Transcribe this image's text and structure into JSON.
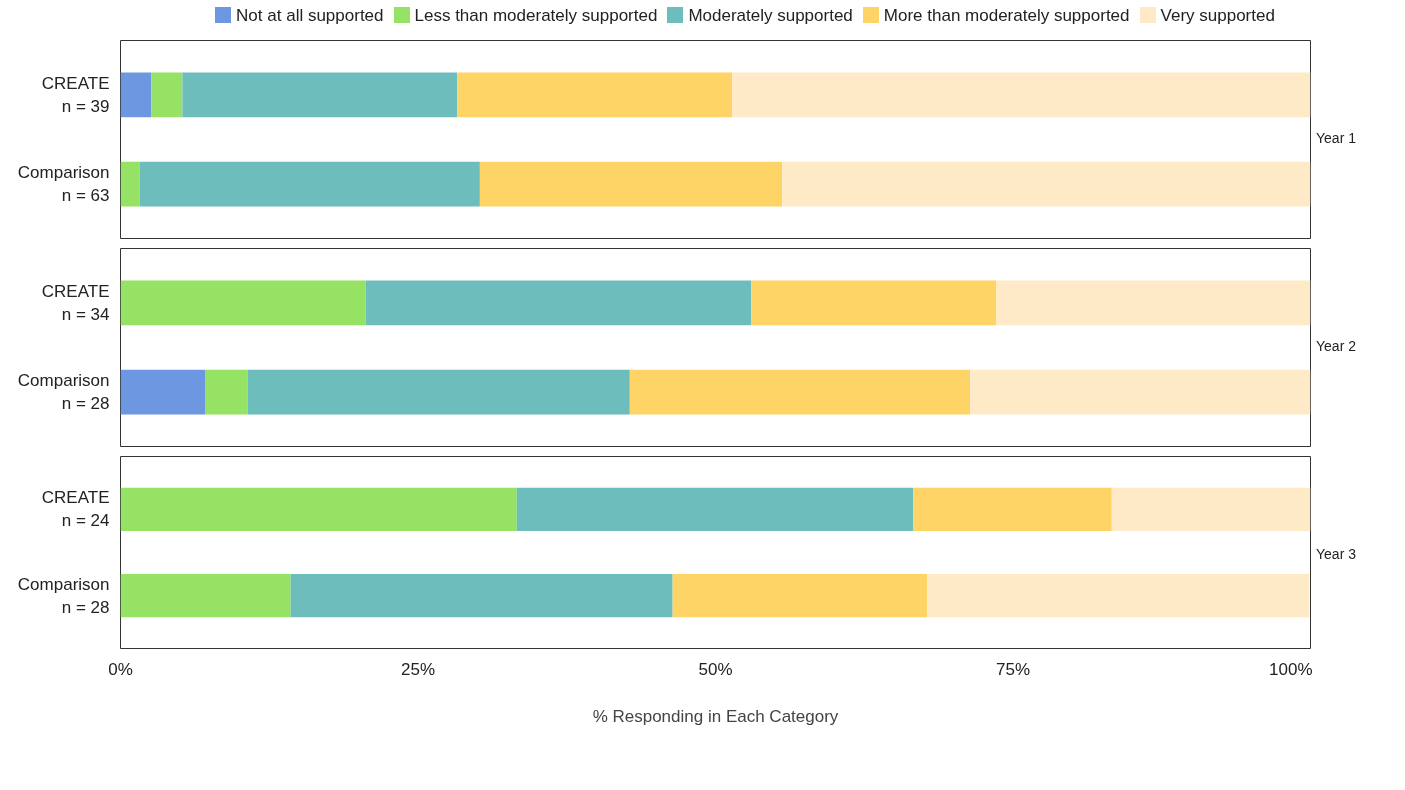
{
  "chart_data": [
    {
      "type": "bar",
      "orientation": "horizontal",
      "stacked": true,
      "title": "Year 1",
      "categories": [
        "CREATE\nn = 39",
        "Comparison\nn = 63"
      ],
      "legend": "top",
      "tick_labels": "y",
      "xlim": [
        0,
        100
      ],
      "series": [
        {
          "name": "Not at all supported",
          "color": "#6e97e2",
          "values": [
            2.6,
            0
          ]
        },
        {
          "name": "Less than moderately supported",
          "color": "#95e264",
          "values": [
            2.6,
            1.6
          ]
        },
        {
          "name": "Moderately supported",
          "color": "#6dbdbd",
          "values": [
            23.1,
            28.6
          ]
        },
        {
          "name": "More than moderately supported",
          "color": "#ffd466",
          "values": [
            23.1,
            25.4
          ]
        },
        {
          "name": "Very supported",
          "color": "#ffeac8",
          "values": [
            48.6,
            44.4
          ]
        }
      ]
    },
    {
      "type": "bar",
      "orientation": "horizontal",
      "stacked": true,
      "title": "Year 2",
      "categories": [
        "CREATE\nn = 34",
        "Comparison\nn = 28"
      ],
      "tick_labels": "y",
      "xlim": [
        0,
        100
      ],
      "series": [
        {
          "color": "#6e97e2",
          "values": [
            0,
            7.1
          ]
        },
        {
          "color": "#95e264",
          "values": [
            20.6,
            3.6
          ]
        },
        {
          "color": "#6dbdbd",
          "values": [
            32.4,
            32.1
          ]
        },
        {
          "color": "#ffd466",
          "values": [
            20.6,
            28.6
          ]
        },
        {
          "color": "#ffeac8",
          "values": [
            26.4,
            28.6
          ]
        }
      ]
    },
    {
      "type": "bar",
      "orientation": "horizontal",
      "stacked": true,
      "title": "Year 3",
      "categories": [
        "CREATE\nn = 24",
        "Comparison\nn = 28"
      ],
      "xlabel": "% Responding in Each Category",
      "xlim": [
        0,
        100
      ],
      "xticks": [
        {
          "value": 0,
          "label": "0%"
        },
        {
          "value": 25,
          "label": "25%"
        },
        {
          "value": 50,
          "label": "50%"
        },
        {
          "value": 75,
          "label": "75%"
        },
        {
          "value": 100,
          "label": "100%"
        }
      ],
      "series": [
        {
          "color": "#6e97e2",
          "values": [
            0,
            0
          ]
        },
        {
          "color": "#95e264",
          "values": [
            33.3,
            14.3
          ]
        },
        {
          "color": "#6dbdbd",
          "values": [
            33.3,
            32.1
          ]
        },
        {
          "color": "#ffd466",
          "values": [
            16.7,
            21.4
          ]
        },
        {
          "color": "#ffeac8",
          "values": [
            16.7,
            32.1
          ]
        }
      ]
    }
  ]
}
